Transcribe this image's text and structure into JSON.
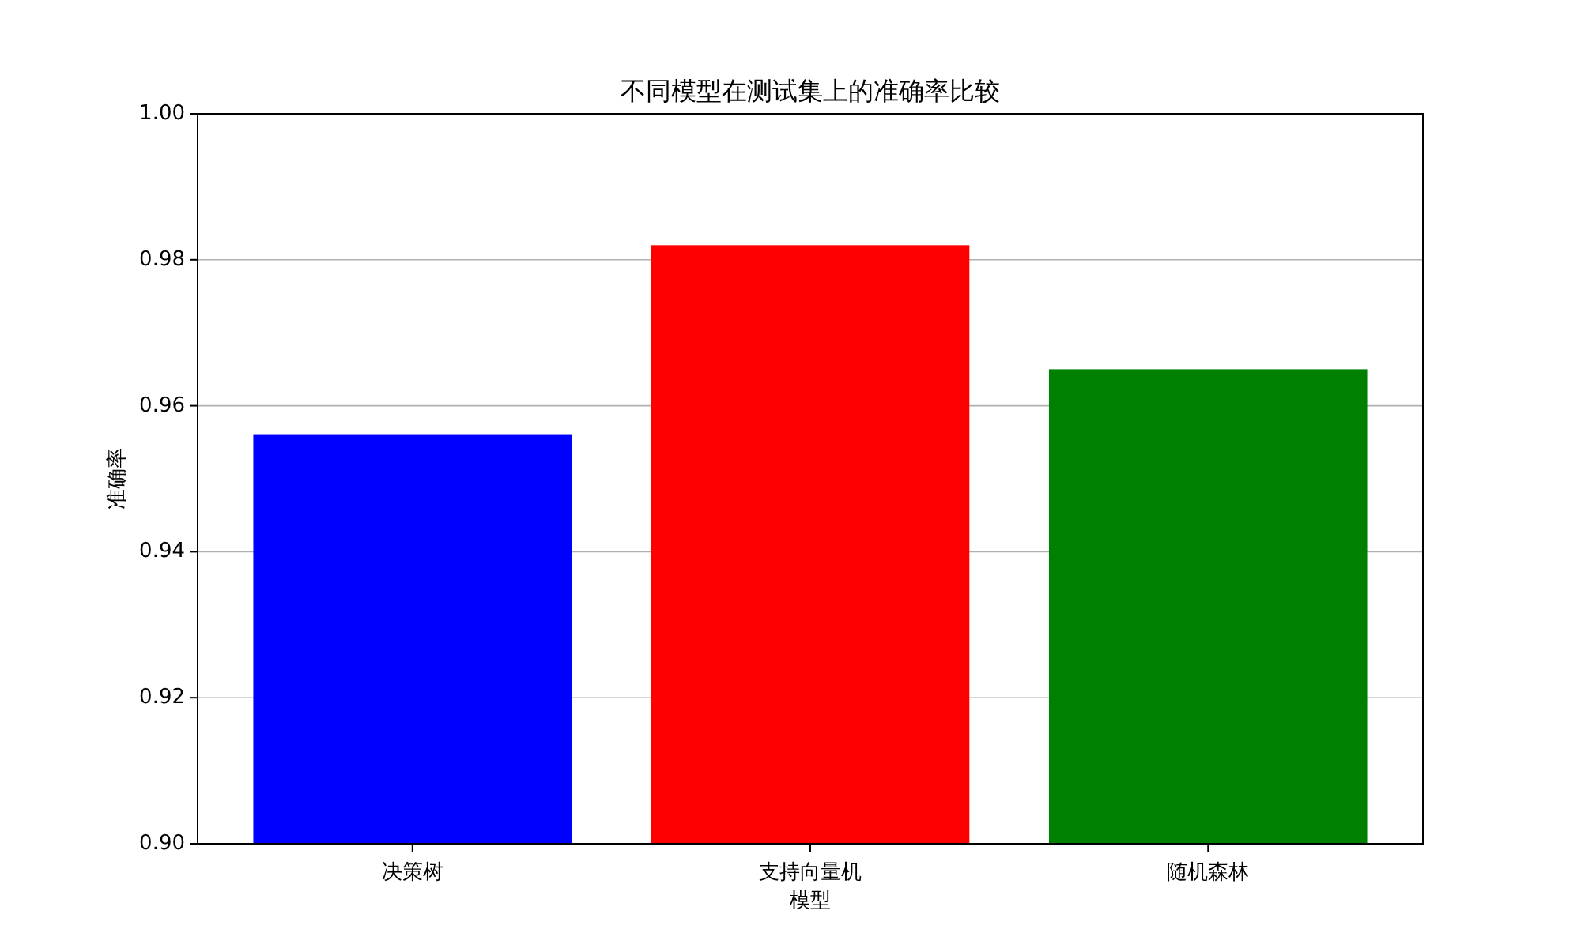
{
  "chart_data": {
    "type": "bar",
    "title": "不同模型在测试集上的准确率比较",
    "xlabel": "模型",
    "ylabel": "准确率",
    "categories": [
      "决策树",
      "支持向量机",
      "随机森林"
    ],
    "values": [
      0.956,
      0.982,
      0.965
    ],
    "colors": [
      "#0000ff",
      "#ff0000",
      "#008000"
    ],
    "ylim": [
      0.9,
      1.0
    ],
    "yticks": [
      {
        "value": 0.9,
        "label": "0.90"
      },
      {
        "value": 0.92,
        "label": "0.92"
      },
      {
        "value": 0.94,
        "label": "0.94"
      },
      {
        "value": 0.96,
        "label": "0.96"
      },
      {
        "value": 0.98,
        "label": "0.98"
      },
      {
        "value": 1.0,
        "label": "1.00"
      }
    ],
    "grid": "y"
  }
}
